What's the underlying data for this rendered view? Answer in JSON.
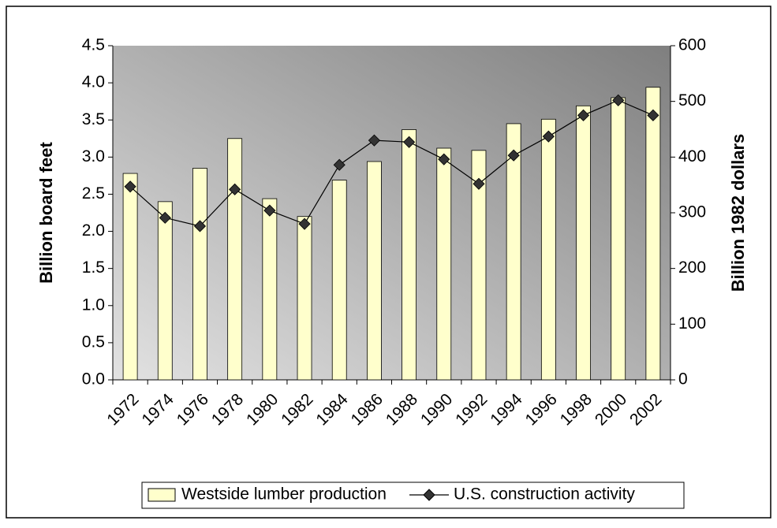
{
  "chart_data": {
    "type": "bar",
    "categories": [
      "1972",
      "1974",
      "1976",
      "1978",
      "1980",
      "1982",
      "1984",
      "1986",
      "1988",
      "1990",
      "1992",
      "1994",
      "1996",
      "1998",
      "2000",
      "2002"
    ],
    "y_label": "Billion board feet",
    "y2_label": "Billion 1982 dollars",
    "ylim": [
      0,
      4.5
    ],
    "yticks": [
      {
        "value": 0,
        "label": "0.0"
      },
      0.5,
      {
        "value": 1,
        "label": "1.0"
      },
      1.5,
      {
        "value": 2,
        "label": "2.0"
      },
      2.5,
      {
        "value": 3,
        "label": "3.0"
      },
      3.5,
      {
        "value": 4,
        "label": "4.0"
      },
      4.5
    ],
    "y2lim": [
      0,
      600
    ],
    "y2ticks": [
      0,
      100,
      200,
      300,
      400,
      500,
      600
    ],
    "legend": "bottom",
    "series": [
      {
        "name": "Westside lumber production",
        "type": "bar",
        "color": "#ffffcc",
        "values": [
          2.78,
          2.4,
          2.85,
          3.25,
          2.44,
          2.2,
          2.69,
          2.94,
          3.37,
          3.12,
          3.09,
          3.45,
          3.51,
          3.69,
          3.8,
          3.94
        ]
      },
      {
        "name": "U.S. construction activity",
        "type": "line",
        "axis": "y2",
        "color": "#333333",
        "values": [
          347,
          291,
          276,
          342,
          304,
          280,
          386,
          430,
          427,
          396,
          352,
          403,
          437,
          475,
          502,
          475
        ]
      }
    ]
  }
}
